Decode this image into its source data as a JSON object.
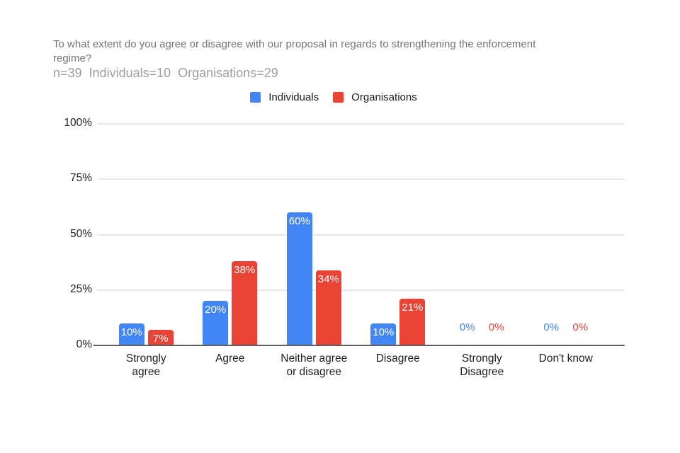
{
  "chart_data": {
    "type": "bar",
    "title": "To what extent do you agree or disagree with our proposal in regards to strengthening the enforcement regime?",
    "title_display": "To what extent do you agree or disagree with our proposal in regards to strengthening the enforcement\nregime?",
    "subtitle": "n=39  Individuals=10  Organisations=29",
    "categories": [
      "Strongly agree",
      "Agree",
      "Neither agree or disagree",
      "Disagree",
      "Strongly Disagree",
      "Don't know"
    ],
    "category_display": [
      "Strongly\nagree",
      "Agree",
      "Neither agree\nor disagree",
      "Disagree",
      "Strongly\nDisagree",
      "Don't know"
    ],
    "series": [
      {
        "name": "Individuals",
        "color": "#4285F4",
        "values": [
          10,
          20,
          60,
          10,
          0,
          0
        ]
      },
      {
        "name": "Organisations",
        "color": "#EA4335",
        "values": [
          7,
          38,
          34,
          21,
          0,
          0
        ]
      }
    ],
    "value_suffix": "%",
    "bar_label_color": "#ffffff",
    "ylim": [
      0,
      100
    ],
    "yticks": [
      "0%",
      "25%",
      "50%",
      "75%",
      "100%"
    ],
    "ytick_values": [
      0,
      25,
      50,
      75,
      100
    ],
    "grid": true,
    "legend_position": "top",
    "xlabel": "",
    "ylabel": ""
  },
  "style_colors": {
    "title_gray": "#757575",
    "subtitle_gray": "#9e9e9e",
    "axis_label": "#1f1f1f",
    "gridline": "#e8e8e8",
    "baseline": "#5f5f5f"
  }
}
